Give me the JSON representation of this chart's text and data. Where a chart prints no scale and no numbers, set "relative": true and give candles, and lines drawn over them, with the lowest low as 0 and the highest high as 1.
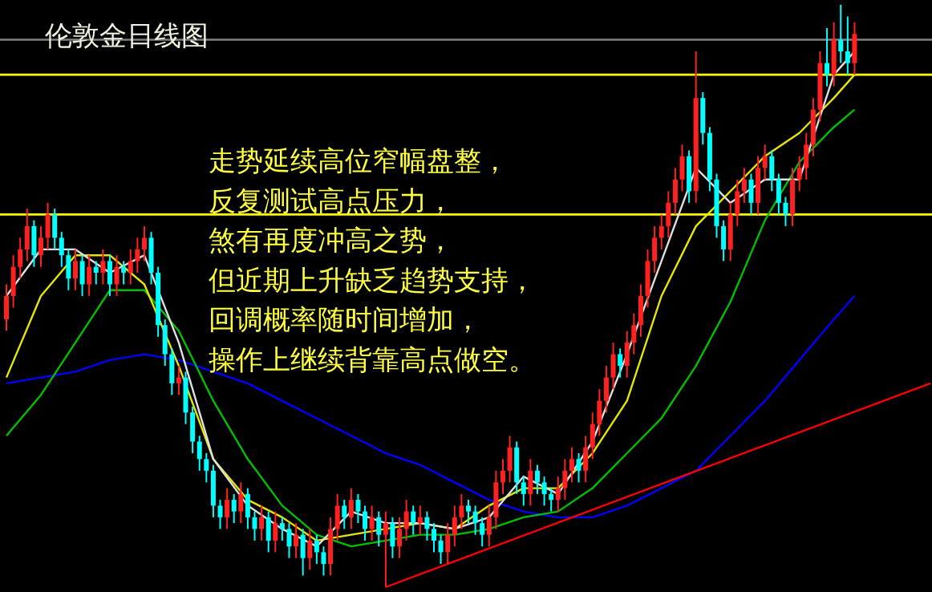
{
  "chart_data": {
    "type": "candlestick",
    "title": "伦敦金日线图",
    "relative": true,
    "annotations": [
      "走势延续高位窄幅盘整，",
      "反复测试高点压力，",
      "煞有再度冲高之势，",
      "但近期上升缺乏趋势支持，",
      "回调概率随时间增加，",
      "操作上继续背靠高点做空。"
    ],
    "categories": [
      null,
      null,
      null,
      null,
      null,
      null,
      null,
      null,
      null,
      null,
      null,
      null,
      null,
      null,
      null,
      null,
      null,
      null,
      null,
      null,
      null,
      null,
      null,
      null,
      null,
      null,
      null,
      null,
      null,
      null,
      null,
      null,
      null,
      null,
      null,
      null,
      null,
      null,
      null,
      null,
      null,
      null,
      null,
      null,
      null,
      null,
      null,
      null,
      null,
      null,
      null,
      null,
      null,
      null,
      null,
      null,
      null,
      null,
      null,
      null,
      null,
      null,
      null,
      null,
      null,
      null,
      null,
      null,
      null,
      null,
      null,
      null,
      null,
      null,
      null,
      null,
      null,
      null,
      null,
      null,
      null,
      null,
      null,
      null,
      null,
      null,
      null,
      null,
      null,
      null,
      null,
      null,
      null,
      null,
      null,
      null,
      null,
      null,
      null,
      null,
      null,
      null,
      null,
      null,
      null,
      null,
      null,
      null,
      null,
      null,
      null,
      null,
      null,
      null,
      null,
      null,
      null,
      null,
      null,
      null,
      null,
      null,
      null,
      null,
      null,
      null,
      null,
      null,
      null,
      null,
      null,
      null,
      null,
      null,
      null
    ],
    "ohlc": [
      [
        0.46,
        0.52,
        0.44,
        0.5
      ],
      [
        0.5,
        0.57,
        0.48,
        0.55
      ],
      [
        0.55,
        0.6,
        0.53,
        0.58
      ],
      [
        0.58,
        0.65,
        0.56,
        0.62
      ],
      [
        0.62,
        0.63,
        0.55,
        0.57
      ],
      [
        0.57,
        0.62,
        0.55,
        0.6
      ],
      [
        0.6,
        0.66,
        0.58,
        0.64
      ],
      [
        0.64,
        0.65,
        0.58,
        0.6
      ],
      [
        0.6,
        0.61,
        0.55,
        0.57
      ],
      [
        0.57,
        0.58,
        0.51,
        0.53
      ],
      [
        0.53,
        0.58,
        0.51,
        0.56
      ],
      [
        0.56,
        0.57,
        0.5,
        0.52
      ],
      [
        0.52,
        0.57,
        0.5,
        0.55
      ],
      [
        0.55,
        0.56,
        0.52,
        0.54
      ],
      [
        0.54,
        0.58,
        0.52,
        0.56
      ],
      [
        0.56,
        0.57,
        0.5,
        0.52
      ],
      [
        0.52,
        0.57,
        0.5,
        0.55
      ],
      [
        0.55,
        0.56,
        0.52,
        0.54
      ],
      [
        0.54,
        0.58,
        0.52,
        0.56
      ],
      [
        0.56,
        0.6,
        0.54,
        0.58
      ],
      [
        0.58,
        0.62,
        0.56,
        0.6
      ],
      [
        0.6,
        0.61,
        0.52,
        0.54
      ],
      [
        0.54,
        0.55,
        0.43,
        0.45
      ],
      [
        0.45,
        0.46,
        0.38,
        0.4
      ],
      [
        0.4,
        0.41,
        0.33,
        0.35
      ],
      [
        0.35,
        0.38,
        0.33,
        0.36
      ],
      [
        0.36,
        0.37,
        0.28,
        0.3
      ],
      [
        0.3,
        0.31,
        0.23,
        0.25
      ],
      [
        0.25,
        0.26,
        0.2,
        0.22
      ],
      [
        0.22,
        0.23,
        0.18,
        0.2
      ],
      [
        0.2,
        0.21,
        0.12,
        0.14
      ],
      [
        0.14,
        0.15,
        0.1,
        0.12
      ],
      [
        0.12,
        0.17,
        0.1,
        0.15
      ],
      [
        0.15,
        0.16,
        0.11,
        0.13
      ],
      [
        0.13,
        0.18,
        0.11,
        0.16
      ],
      [
        0.16,
        0.17,
        0.1,
        0.12
      ],
      [
        0.12,
        0.13,
        0.08,
        0.1
      ],
      [
        0.1,
        0.14,
        0.08,
        0.12
      ],
      [
        0.12,
        0.13,
        0.06,
        0.08
      ],
      [
        0.08,
        0.13,
        0.06,
        0.11
      ],
      [
        0.11,
        0.12,
        0.08,
        0.1
      ],
      [
        0.1,
        0.11,
        0.05,
        0.07
      ],
      [
        0.07,
        0.11,
        0.05,
        0.09
      ],
      [
        0.09,
        0.1,
        0.02,
        0.05
      ],
      [
        0.05,
        0.1,
        0.03,
        0.08
      ],
      [
        0.08,
        0.09,
        0.04,
        0.06
      ],
      [
        0.06,
        0.07,
        0.02,
        0.04
      ],
      [
        0.04,
        0.12,
        0.02,
        0.1
      ],
      [
        0.1,
        0.16,
        0.08,
        0.14
      ],
      [
        0.14,
        0.15,
        0.1,
        0.12
      ],
      [
        0.12,
        0.17,
        0.1,
        0.15
      ],
      [
        0.15,
        0.16,
        0.11,
        0.13
      ],
      [
        0.13,
        0.14,
        0.08,
        0.1
      ],
      [
        0.1,
        0.14,
        0.08,
        0.12
      ],
      [
        0.12,
        0.13,
        0.07,
        0.09
      ],
      [
        0.09,
        0.13,
        0.0,
        0.11
      ],
      [
        0.11,
        0.12,
        0.05,
        0.07
      ],
      [
        0.07,
        0.12,
        0.05,
        0.1
      ],
      [
        0.1,
        0.15,
        0.08,
        0.13
      ],
      [
        0.13,
        0.14,
        0.09,
        0.11
      ],
      [
        0.11,
        0.14,
        0.09,
        0.12
      ],
      [
        0.12,
        0.13,
        0.08,
        0.1
      ],
      [
        0.1,
        0.11,
        0.06,
        0.08
      ],
      [
        0.08,
        0.09,
        0.04,
        0.06
      ],
      [
        0.06,
        0.11,
        0.04,
        0.09
      ],
      [
        0.09,
        0.14,
        0.07,
        0.12
      ],
      [
        0.12,
        0.16,
        0.1,
        0.14
      ],
      [
        0.14,
        0.15,
        0.11,
        0.13
      ],
      [
        0.13,
        0.14,
        0.09,
        0.11
      ],
      [
        0.11,
        0.12,
        0.07,
        0.09
      ],
      [
        0.09,
        0.14,
        0.07,
        0.12
      ],
      [
        0.12,
        0.2,
        0.1,
        0.18
      ],
      [
        0.18,
        0.22,
        0.16,
        0.2
      ],
      [
        0.2,
        0.26,
        0.18,
        0.24
      ],
      [
        0.24,
        0.25,
        0.16,
        0.18
      ],
      [
        0.18,
        0.19,
        0.14,
        0.16
      ],
      [
        0.16,
        0.22,
        0.14,
        0.2
      ],
      [
        0.2,
        0.21,
        0.16,
        0.18
      ],
      [
        0.18,
        0.19,
        0.14,
        0.16
      ],
      [
        0.16,
        0.17,
        0.13,
        0.15
      ],
      [
        0.15,
        0.19,
        0.13,
        0.17
      ],
      [
        0.17,
        0.22,
        0.15,
        0.2
      ],
      [
        0.2,
        0.24,
        0.18,
        0.22
      ],
      [
        0.22,
        0.23,
        0.18,
        0.2
      ],
      [
        0.2,
        0.26,
        0.18,
        0.24
      ],
      [
        0.24,
        0.3,
        0.22,
        0.28
      ],
      [
        0.28,
        0.34,
        0.26,
        0.32
      ],
      [
        0.32,
        0.38,
        0.3,
        0.36
      ],
      [
        0.36,
        0.42,
        0.34,
        0.4
      ],
      [
        0.4,
        0.41,
        0.36,
        0.38
      ],
      [
        0.38,
        0.44,
        0.36,
        0.42
      ],
      [
        0.42,
        0.47,
        0.4,
        0.45
      ],
      [
        0.45,
        0.52,
        0.43,
        0.5
      ],
      [
        0.5,
        0.58,
        0.48,
        0.56
      ],
      [
        0.56,
        0.62,
        0.54,
        0.6
      ],
      [
        0.6,
        0.64,
        0.58,
        0.62
      ],
      [
        0.62,
        0.68,
        0.6,
        0.66
      ],
      [
        0.66,
        0.72,
        0.64,
        0.7
      ],
      [
        0.7,
        0.76,
        0.68,
        0.74
      ],
      [
        0.74,
        0.75,
        0.66,
        0.68
      ],
      [
        0.68,
        0.92,
        0.66,
        0.84
      ],
      [
        0.84,
        0.85,
        0.76,
        0.78
      ],
      [
        0.78,
        0.79,
        0.68,
        0.7
      ],
      [
        0.7,
        0.71,
        0.6,
        0.62
      ],
      [
        0.62,
        0.63,
        0.56,
        0.58
      ],
      [
        0.58,
        0.66,
        0.56,
        0.64
      ],
      [
        0.64,
        0.7,
        0.62,
        0.68
      ],
      [
        0.68,
        0.72,
        0.66,
        0.7
      ],
      [
        0.7,
        0.71,
        0.64,
        0.66
      ],
      [
        0.66,
        0.74,
        0.64,
        0.72
      ],
      [
        0.72,
        0.76,
        0.7,
        0.74
      ],
      [
        0.74,
        0.75,
        0.68,
        0.7
      ],
      [
        0.7,
        0.71,
        0.64,
        0.66
      ],
      [
        0.66,
        0.67,
        0.62,
        0.64
      ],
      [
        0.64,
        0.72,
        0.62,
        0.7
      ],
      [
        0.7,
        0.74,
        0.68,
        0.72
      ],
      [
        0.72,
        0.78,
        0.7,
        0.76
      ],
      [
        0.76,
        0.84,
        0.74,
        0.82
      ],
      [
        0.82,
        0.92,
        0.8,
        0.9
      ],
      [
        0.9,
        0.96,
        0.86,
        0.88
      ],
      [
        0.88,
        0.97,
        0.86,
        0.94
      ],
      [
        0.94,
        1.0,
        0.9,
        0.92
      ],
      [
        0.92,
        0.98,
        0.88,
        0.9
      ],
      [
        0.9,
        0.97,
        0.88,
        0.95
      ],
      null,
      null,
      null,
      null,
      null,
      null,
      null,
      null,
      null,
      null,
      null
    ],
    "series": [
      {
        "type": "line",
        "color": "#0000ff",
        "values": [
          0.35,
          null,
          null,
          null,
          null,
          0.36,
          null,
          null,
          null,
          null,
          0.37,
          null,
          null,
          null,
          null,
          0.39,
          null,
          null,
          null,
          null,
          0.4,
          null,
          null,
          null,
          null,
          0.39,
          null,
          null,
          null,
          null,
          0.37,
          null,
          null,
          null,
          null,
          0.35,
          null,
          null,
          null,
          null,
          0.32,
          null,
          null,
          null,
          null,
          0.29,
          null,
          null,
          null,
          null,
          0.26,
          null,
          null,
          null,
          null,
          0.23,
          null,
          null,
          null,
          null,
          0.21,
          null,
          null,
          null,
          null,
          0.18,
          null,
          null,
          null,
          null,
          0.15,
          null,
          null,
          null,
          null,
          0.13,
          null,
          null,
          null,
          null,
          0.12,
          null,
          null,
          null,
          null,
          0.12,
          null,
          null,
          null,
          null,
          0.14,
          null,
          null,
          null,
          null,
          0.17,
          null,
          null,
          null,
          null,
          0.2,
          null,
          null,
          null,
          null,
          0.26,
          null,
          null,
          null,
          null,
          0.32,
          null,
          null,
          null,
          null,
          0.39,
          null,
          null,
          null,
          null,
          0.46,
          null,
          null,
          0.5,
          null,
          null,
          null,
          null,
          null,
          null,
          null,
          null,
          null,
          null,
          null
        ]
      },
      {
        "type": "line",
        "color": "#00c000",
        "values": [
          0.26,
          null,
          null,
          null,
          null,
          0.33,
          null,
          null,
          null,
          null,
          0.42,
          null,
          null,
          null,
          null,
          0.51,
          null,
          null,
          null,
          null,
          0.51,
          null,
          null,
          null,
          null,
          0.44,
          null,
          null,
          null,
          null,
          0.32,
          null,
          null,
          null,
          null,
          0.22,
          null,
          null,
          null,
          null,
          0.14,
          null,
          null,
          null,
          null,
          0.09,
          null,
          null,
          null,
          null,
          0.07,
          null,
          null,
          null,
          null,
          0.08,
          null,
          null,
          null,
          null,
          0.09,
          null,
          null,
          null,
          null,
          0.09,
          null,
          null,
          null,
          null,
          0.1,
          null,
          null,
          null,
          null,
          0.12,
          null,
          null,
          null,
          null,
          0.13,
          null,
          null,
          null,
          null,
          0.17,
          null,
          null,
          null,
          null,
          0.23,
          null,
          null,
          null,
          null,
          0.29,
          null,
          null,
          null,
          null,
          0.38,
          null,
          null,
          null,
          null,
          0.49,
          null,
          null,
          null,
          null,
          0.63,
          null,
          null,
          null,
          null,
          0.73,
          null,
          null,
          null,
          null,
          0.79,
          null,
          null,
          0.82,
          null,
          null,
          null,
          null,
          null,
          null,
          null,
          null,
          null,
          null,
          null
        ]
      },
      {
        "type": "line",
        "color": "#e6e600",
        "values": [
          0.36,
          null,
          null,
          null,
          null,
          0.5,
          null,
          null,
          null,
          null,
          0.57,
          null,
          null,
          null,
          null,
          0.57,
          null,
          null,
          null,
          null,
          0.52,
          null,
          null,
          null,
          null,
          0.38,
          null,
          null,
          null,
          null,
          0.22,
          null,
          null,
          null,
          null,
          0.15,
          null,
          null,
          null,
          null,
          0.12,
          null,
          null,
          null,
          null,
          0.08,
          null,
          null,
          null,
          null,
          0.09,
          null,
          null,
          null,
          null,
          0.1,
          null,
          null,
          null,
          null,
          0.11,
          null,
          null,
          null,
          null,
          0.1,
          null,
          null,
          null,
          null,
          0.14,
          null,
          null,
          null,
          null,
          0.17,
          null,
          null,
          null,
          null,
          0.17,
          null,
          null,
          null,
          null,
          0.23,
          null,
          null,
          null,
          null,
          0.32,
          null,
          null,
          null,
          null,
          0.5,
          null,
          null,
          null,
          null,
          0.62,
          null,
          null,
          null,
          null,
          0.68,
          null,
          null,
          null,
          null,
          0.74,
          null,
          null,
          null,
          null,
          0.78,
          null,
          null,
          null,
          null,
          0.84,
          null,
          null,
          0.88,
          null,
          null,
          null,
          null,
          null,
          null,
          null,
          null,
          null,
          null,
          null
        ]
      },
      {
        "type": "line",
        "color": "#e0e0e0",
        "values": [
          0.5,
          null,
          null,
          null,
          null,
          0.58,
          null,
          null,
          null,
          null,
          0.58,
          null,
          null,
          null,
          null,
          0.54,
          null,
          null,
          null,
          null,
          0.57,
          null,
          null,
          null,
          null,
          0.42,
          null,
          null,
          null,
          null,
          0.22,
          null,
          null,
          null,
          null,
          0.14,
          null,
          null,
          null,
          null,
          0.1,
          null,
          null,
          null,
          null,
          0.07,
          null,
          null,
          null,
          null,
          0.13,
          null,
          null,
          null,
          null,
          0.11,
          null,
          null,
          null,
          null,
          0.11,
          null,
          null,
          null,
          null,
          0.1,
          null,
          null,
          null,
          null,
          0.12,
          null,
          null,
          null,
          null,
          0.19,
          null,
          null,
          null,
          null,
          0.16,
          null,
          null,
          null,
          null,
          0.25,
          null,
          null,
          null,
          null,
          0.4,
          null,
          null,
          null,
          null,
          0.56,
          null,
          null,
          null,
          null,
          0.72,
          null,
          null,
          null,
          null,
          0.66,
          null,
          null,
          null,
          null,
          0.7,
          null,
          null,
          null,
          null,
          0.7,
          null,
          null,
          null,
          null,
          0.88,
          null,
          null,
          0.92,
          null,
          null,
          null,
          null,
          null,
          null,
          null,
          null,
          null,
          null,
          null
        ]
      },
      {
        "type": "line",
        "color": "#ff0000",
        "values": [
          null,
          null,
          null,
          null,
          null,
          null,
          null,
          null,
          null,
          null,
          null,
          null,
          null,
          null,
          null,
          null,
          null,
          null,
          null,
          null,
          null,
          null,
          null,
          null,
          null,
          null,
          null,
          null,
          null,
          null,
          null,
          null,
          null,
          null,
          null,
          null,
          null,
          null,
          null,
          null,
          null,
          null,
          null,
          null,
          null,
          null,
          null,
          null,
          null,
          null,
          null,
          null,
          null,
          null,
          null,
          0.0,
          null,
          null,
          null,
          null,
          null,
          null,
          null,
          null,
          null,
          null,
          null,
          null,
          null,
          null,
          null,
          null,
          null,
          null,
          null,
          null,
          null,
          null,
          null,
          null,
          null,
          null,
          null,
          null,
          null,
          null,
          null,
          null,
          null,
          null,
          null,
          null,
          null,
          null,
          null,
          null,
          null,
          null,
          null,
          null,
          null,
          null,
          null,
          null,
          null,
          null,
          null,
          null,
          null,
          null,
          null,
          null,
          null,
          null,
          null,
          null,
          null,
          null,
          null,
          null,
          null,
          null,
          null,
          null,
          null,
          null,
          null,
          null,
          null,
          null,
          null,
          null,
          null,
          null,
          0.35
        ]
      }
    ],
    "ref_lines": [
      {
        "axis": "y",
        "value": 0.94,
        "color": "#808080"
      },
      {
        "axis": "y",
        "value": 0.88,
        "color": "#ffff00"
      },
      {
        "axis": "y",
        "value": 0.64,
        "color": "#ffff00"
      }
    ]
  }
}
